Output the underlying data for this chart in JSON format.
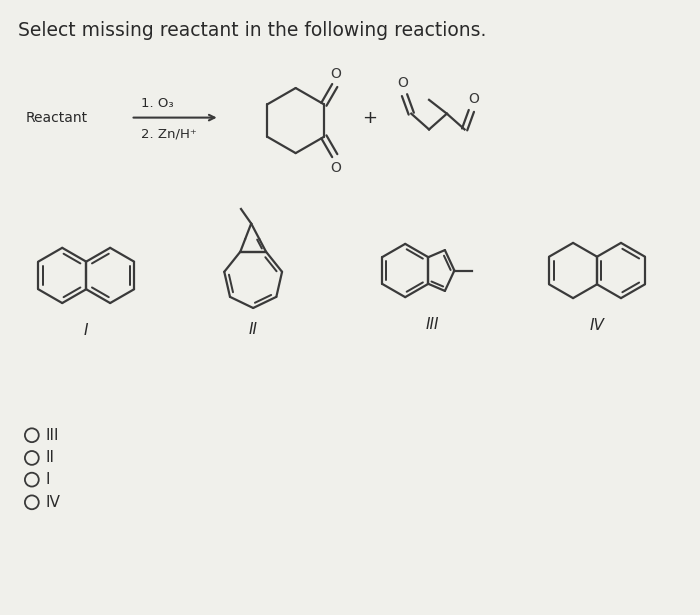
{
  "title": "Select missing reactant in the following reactions.",
  "background_color": "#f0f0eb",
  "text_color": "#2a2a2a",
  "title_fontsize": 13.5,
  "reactant_label": "Reactant",
  "step1": "1. O₃",
  "step2": "2. Zn/H⁺",
  "plus_sign": "+",
  "line_color": "#3a3a3a",
  "lw": 1.6
}
